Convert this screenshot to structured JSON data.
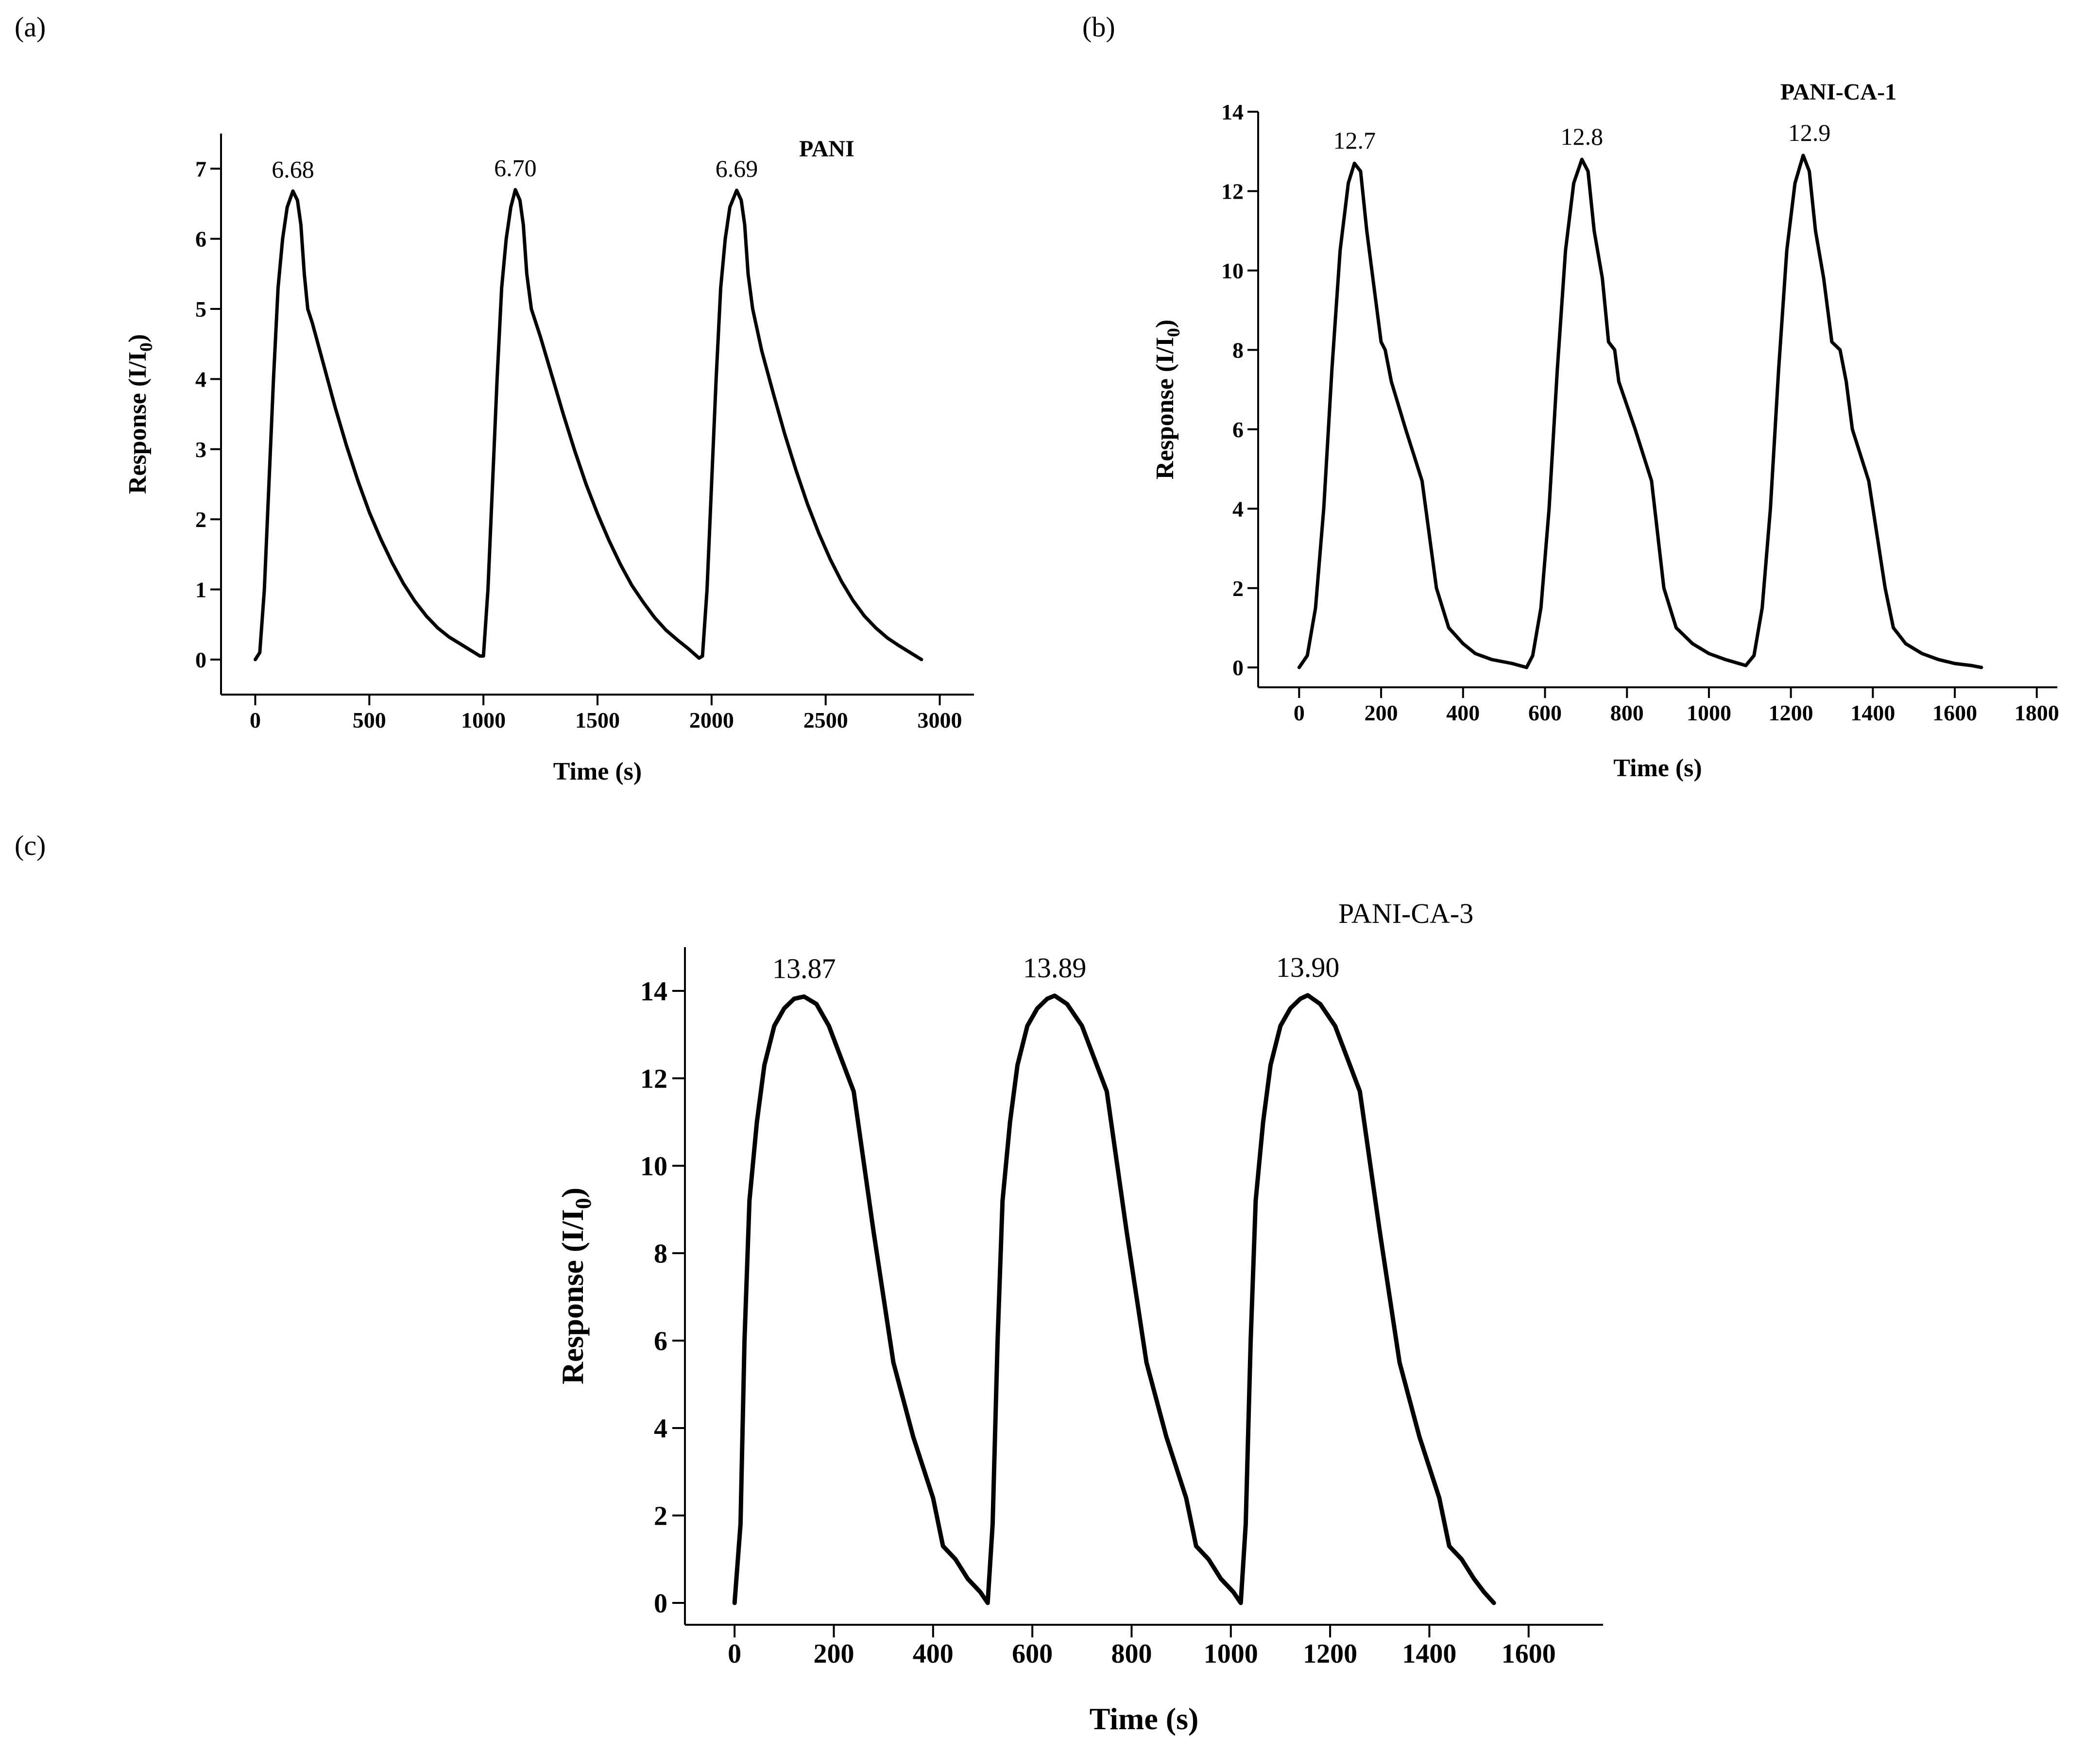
{
  "figure": {
    "panels": [
      "(a)",
      "(b)",
      "(c)"
    ]
  },
  "chart_data": [
    {
      "id": "a",
      "panel_label": "(a)",
      "type": "line",
      "series_name": "PANI",
      "series_name_bold": true,
      "xlabel": "Time (s)",
      "ylabel": "Response (I/I",
      "ylabel_sub": "0",
      "ylabel_close": ")",
      "xlim": [
        -150,
        3150
      ],
      "ylim": [
        -0.5,
        7.5
      ],
      "xticks": [
        0,
        500,
        1000,
        1500,
        2000,
        2500,
        3000
      ],
      "yticks": [
        0,
        1,
        2,
        3,
        4,
        5,
        6,
        7
      ],
      "peak_labels": [
        {
          "x": 165,
          "y": 6.68,
          "text": "6.68"
        },
        {
          "x": 1140,
          "y": 6.7,
          "text": "6.70"
        },
        {
          "x": 2110,
          "y": 6.69,
          "text": "6.69"
        }
      ],
      "series": [
        {
          "name": "PANI",
          "x": [
            0,
            20,
            40,
            60,
            80,
            100,
            120,
            140,
            165,
            185,
            200,
            215,
            230,
            250,
            300,
            350,
            400,
            450,
            500,
            550,
            600,
            650,
            700,
            750,
            800,
            850,
            900,
            950,
            985,
            1000,
            1020,
            1040,
            1060,
            1080,
            1100,
            1120,
            1140,
            1160,
            1175,
            1190,
            1210,
            1250,
            1300,
            1350,
            1400,
            1450,
            1500,
            1550,
            1600,
            1650,
            1700,
            1750,
            1800,
            1850,
            1900,
            1945,
            1960,
            1980,
            2000,
            2020,
            2040,
            2060,
            2080,
            2110,
            2130,
            2145,
            2160,
            2180,
            2220,
            2270,
            2320,
            2370,
            2420,
            2470,
            2520,
            2570,
            2620,
            2670,
            2720,
            2770,
            2820,
            2870,
            2920
          ],
          "y": [
            0,
            0.1,
            1.0,
            2.5,
            4.0,
            5.3,
            6.0,
            6.45,
            6.68,
            6.55,
            6.2,
            5.5,
            5.0,
            4.8,
            4.2,
            3.6,
            3.05,
            2.55,
            2.1,
            1.72,
            1.38,
            1.08,
            0.83,
            0.62,
            0.45,
            0.32,
            0.22,
            0.12,
            0.05,
            0.05,
            1.0,
            2.5,
            4.0,
            5.3,
            6.0,
            6.45,
            6.7,
            6.55,
            6.2,
            5.5,
            5.0,
            4.6,
            4.05,
            3.5,
            2.98,
            2.5,
            2.08,
            1.7,
            1.36,
            1.06,
            0.82,
            0.6,
            0.42,
            0.28,
            0.15,
            0.02,
            0.05,
            1.0,
            2.5,
            4.0,
            5.3,
            6.0,
            6.45,
            6.69,
            6.55,
            6.2,
            5.5,
            5.0,
            4.4,
            3.8,
            3.22,
            2.7,
            2.22,
            1.8,
            1.43,
            1.11,
            0.84,
            0.62,
            0.45,
            0.31,
            0.2,
            0.1,
            0.0
          ]
        }
      ]
    },
    {
      "id": "b",
      "panel_label": "(b)",
      "type": "line",
      "series_name": "PANI-CA-1",
      "series_name_bold": true,
      "xlabel": "Time (s)",
      "ylabel": "Response (I/I",
      "ylabel_sub": "0",
      "ylabel_close": ")",
      "xlim": [
        -100,
        1850
      ],
      "ylim": [
        -0.5,
        14
      ],
      "xticks": [
        0,
        200,
        400,
        600,
        800,
        1000,
        1200,
        1400,
        1600,
        1800
      ],
      "yticks": [
        0,
        2,
        4,
        6,
        8,
        10,
        12,
        14
      ],
      "peak_labels": [
        {
          "x": 135,
          "y": 12.7,
          "text": "12.7"
        },
        {
          "x": 690,
          "y": 12.8,
          "text": "12.8"
        },
        {
          "x": 1245,
          "y": 12.9,
          "text": "12.9"
        }
      ],
      "series": [
        {
          "name": "PANI-CA-1",
          "x": [
            0,
            20,
            40,
            60,
            80,
            100,
            120,
            135,
            150,
            165,
            180,
            200,
            210,
            225,
            260,
            300,
            335,
            365,
            400,
            430,
            470,
            520,
            555,
            570,
            590,
            610,
            630,
            650,
            670,
            690,
            705,
            720,
            740,
            755,
            770,
            780,
            820,
            860,
            890,
            920,
            960,
            1000,
            1040,
            1090,
            1110,
            1130,
            1150,
            1170,
            1190,
            1210,
            1230,
            1245,
            1260,
            1280,
            1300,
            1320,
            1335,
            1350,
            1390,
            1430,
            1450,
            1480,
            1520,
            1560,
            1600,
            1640,
            1665
          ],
          "y": [
            0,
            0.3,
            1.5,
            4.0,
            7.5,
            10.5,
            12.2,
            12.7,
            12.5,
            11.0,
            9.8,
            8.2,
            8.0,
            7.2,
            6.0,
            4.7,
            2.0,
            1.0,
            0.6,
            0.35,
            0.2,
            0.1,
            0.0,
            0.3,
            1.5,
            4.0,
            7.5,
            10.5,
            12.2,
            12.8,
            12.5,
            11.0,
            9.8,
            8.2,
            8.0,
            7.2,
            6.0,
            4.7,
            2.0,
            1.0,
            0.6,
            0.35,
            0.2,
            0.05,
            0.3,
            1.5,
            4.0,
            7.5,
            10.5,
            12.2,
            12.9,
            12.5,
            11.0,
            9.8,
            8.2,
            8.0,
            7.2,
            6.0,
            4.7,
            2.0,
            1.0,
            0.6,
            0.35,
            0.2,
            0.1,
            0.05,
            0.0
          ]
        }
      ]
    },
    {
      "id": "c",
      "panel_label": "(c)",
      "type": "line",
      "series_name": "PANI-CA-3",
      "series_name_bold": false,
      "xlabel": "Time (s)",
      "ylabel": "Response (I/I",
      "ylabel_sub": "0",
      "ylabel_close": ")",
      "xlim": [
        -100,
        1750
      ],
      "ylim": [
        -0.5,
        15
      ],
      "xticks": [
        0,
        200,
        400,
        600,
        800,
        1000,
        1200,
        1400,
        1600
      ],
      "yticks": [
        0,
        2,
        4,
        6,
        8,
        10,
        12,
        14
      ],
      "peak_labels": [
        {
          "x": 140,
          "y": 13.87,
          "text": "13.87"
        },
        {
          "x": 645,
          "y": 13.89,
          "text": "13.89"
        },
        {
          "x": 1155,
          "y": 13.9,
          "text": "13.90"
        }
      ],
      "series": [
        {
          "name": "PANI-CA-3",
          "x": [
            0,
            12,
            20,
            30,
            45,
            60,
            80,
            100,
            120,
            140,
            165,
            190,
            220,
            240,
            280,
            320,
            360,
            400,
            420,
            445,
            470,
            495,
            510,
            520,
            530,
            540,
            555,
            570,
            590,
            610,
            630,
            645,
            670,
            700,
            730,
            750,
            790,
            830,
            870,
            910,
            930,
            955,
            980,
            1005,
            1020,
            1030,
            1040,
            1050,
            1065,
            1080,
            1100,
            1120,
            1140,
            1155,
            1180,
            1210,
            1240,
            1260,
            1300,
            1340,
            1380,
            1420,
            1440,
            1465,
            1490,
            1510,
            1530
          ],
          "y": [
            0,
            1.8,
            6.0,
            9.2,
            11.0,
            12.3,
            13.2,
            13.6,
            13.82,
            13.87,
            13.7,
            13.2,
            12.3,
            11.7,
            8.5,
            5.5,
            3.8,
            2.4,
            1.3,
            1.0,
            0.55,
            0.25,
            0.0,
            1.8,
            6.0,
            9.2,
            11.0,
            12.3,
            13.2,
            13.6,
            13.82,
            13.89,
            13.7,
            13.2,
            12.3,
            11.7,
            8.5,
            5.5,
            3.8,
            2.4,
            1.3,
            1.0,
            0.55,
            0.25,
            0.0,
            1.8,
            6.0,
            9.2,
            11.0,
            12.3,
            13.2,
            13.6,
            13.82,
            13.9,
            13.7,
            13.2,
            12.3,
            11.7,
            8.5,
            5.5,
            3.8,
            2.4,
            1.3,
            1.0,
            0.55,
            0.25,
            0.0
          ]
        }
      ]
    }
  ]
}
